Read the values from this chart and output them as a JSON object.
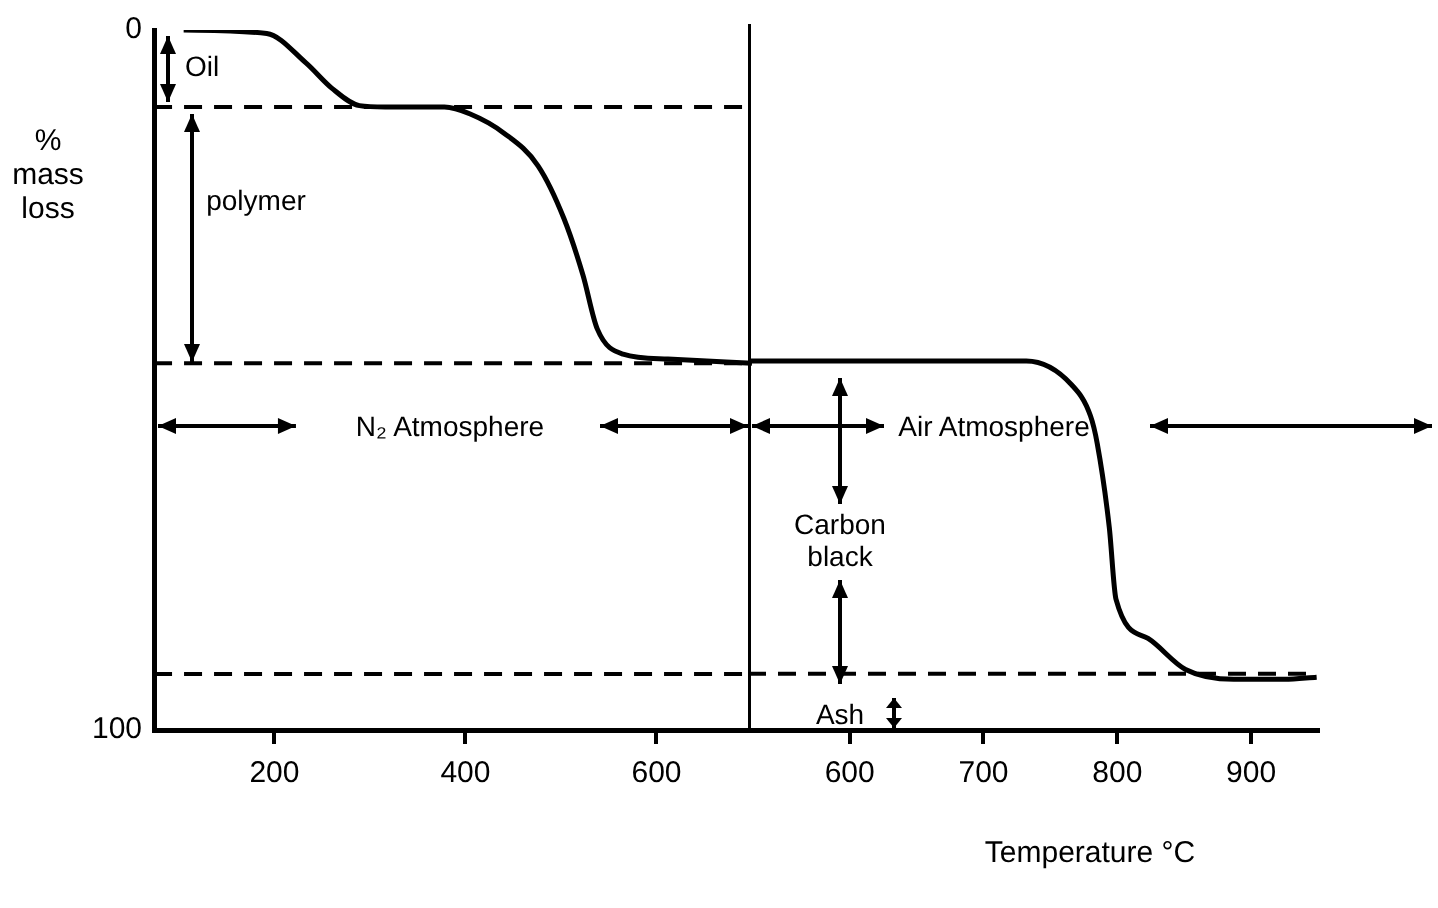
{
  "chart_data": [
    {
      "type": "line",
      "ylabel": "% mass loss",
      "xlim": [
        74,
        700
      ],
      "xticks": [
        200,
        400,
        600
      ],
      "ylim": [
        100,
        0
      ],
      "yticks": [
        0,
        100
      ],
      "grid": false,
      "legend": false,
      "marker": "none",
      "series": [
        {
          "color": "#000000",
          "x": [
            105,
            192,
            233,
            260,
            289,
            316,
            378,
            405,
            440,
            476,
            503,
            523,
            538,
            565,
            612,
            700
          ],
          "values": [
            0,
            0.5,
            4.7,
            8.3,
            10.8,
            11,
            11,
            12,
            14.7,
            19.4,
            26.9,
            35,
            42.7,
            46.3,
            47,
            47.6
          ]
        }
      ],
      "ref_lines": [
        {
          "axis": "y",
          "value": 11,
          "line_style": "dashed"
        },
        {
          "axis": "y",
          "value": 47.6,
          "line_style": "dashed"
        },
        {
          "axis": "y",
          "value": 92,
          "line_style": "dashed"
        }
      ],
      "annotations": [
        "Oil",
        "polymer",
        "N₂ Atmosphere"
      ]
    },
    {
      "type": "line",
      "xlabel": "Temperature °C",
      "xlim": [
        524,
        950
      ],
      "xticks": [
        600,
        700,
        800,
        900
      ],
      "ylim": [
        100,
        0
      ],
      "grid": false,
      "legend": false,
      "marker": "none",
      "tick_labels": "x",
      "series": [
        {
          "color": "#000000",
          "x": [
            524,
            732,
            766,
            780,
            785,
            794,
            799,
            823,
            851,
            887,
            925,
            949
          ],
          "values": [
            47.6,
            47.6,
            51,
            55.4,
            59.3,
            71.2,
            81.4,
            87,
            91.4,
            92.8,
            92.8,
            92.5
          ]
        }
      ],
      "ref_lines": [
        {
          "axis": "y",
          "value": 92,
          "line_style": "dashed"
        }
      ],
      "annotations": [
        "Air Atmosphere",
        "Carbon black",
        "Ash"
      ]
    }
  ]
}
